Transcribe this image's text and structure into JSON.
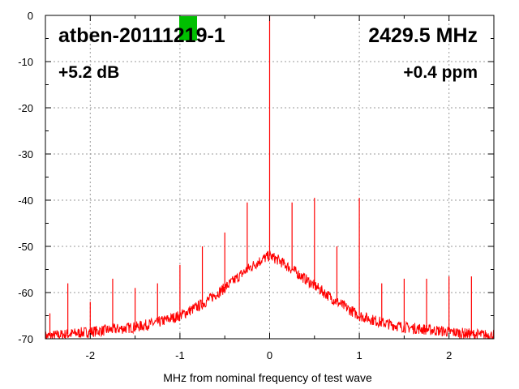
{
  "chart_data": {
    "type": "line",
    "xlabel": "MHz from nominal frequency of test wave",
    "ylabel": "",
    "xlim": [
      -2.5,
      2.5
    ],
    "ylim": [
      -70,
      0
    ],
    "xticks": [
      -2,
      -1,
      0,
      1,
      2
    ],
    "yticks": [
      0,
      -10,
      -20,
      -30,
      -40,
      -50,
      -60,
      -70
    ],
    "xtick_labels": [
      "-2",
      "-1",
      "0",
      "1",
      "2"
    ],
    "ytick_labels": [
      "0",
      "-10",
      "-20",
      "-30",
      "-40",
      "-50",
      "-60",
      "-70"
    ],
    "grid": true,
    "series_color": "#ff0000",
    "indicator_color": "#00c000",
    "annotations": {
      "device": "atben-20111219-1",
      "frequency": "2429.5 MHz",
      "power_offset": "+5.2 dB",
      "freq_offset": "+0.4 ppm"
    },
    "series": [
      {
        "envelope": [
          [
            -2.5,
            -69.5
          ],
          [
            -2.25,
            -69.0
          ],
          [
            -2.0,
            -68.5
          ],
          [
            -1.75,
            -68.0
          ],
          [
            -1.5,
            -67.5
          ],
          [
            -1.25,
            -66.5
          ],
          [
            -1.0,
            -65.0
          ],
          [
            -0.75,
            -62.5
          ],
          [
            -0.5,
            -59.0
          ],
          [
            -0.25,
            -55.0
          ],
          [
            -0.1,
            -53.0
          ],
          [
            0.0,
            -52.0
          ],
          [
            0.1,
            -53.0
          ],
          [
            0.25,
            -55.0
          ],
          [
            0.5,
            -58.5
          ],
          [
            0.75,
            -62.0
          ],
          [
            1.0,
            -65.0
          ],
          [
            1.25,
            -66.5
          ],
          [
            1.5,
            -67.5
          ],
          [
            1.75,
            -68.0
          ],
          [
            2.0,
            -68.5
          ],
          [
            2.25,
            -69.0
          ],
          [
            2.5,
            -69.3
          ]
        ],
        "spikes": [
          [
            -2.45,
            -64.5
          ],
          [
            -2.25,
            -58.0
          ],
          [
            -2.0,
            -62.0
          ],
          [
            -1.75,
            -57.0
          ],
          [
            -1.5,
            -59.0
          ],
          [
            -1.25,
            -58.0
          ],
          [
            -1.0,
            -54.0
          ],
          [
            -0.75,
            -50.0
          ],
          [
            -0.5,
            -47.0
          ],
          [
            -0.25,
            -40.5
          ],
          [
            0.0,
            0.0
          ],
          [
            0.25,
            -40.5
          ],
          [
            0.5,
            -39.5
          ],
          [
            0.75,
            -50.0
          ],
          [
            1.0,
            -39.5
          ],
          [
            1.25,
            -58.0
          ],
          [
            1.5,
            -57.0
          ],
          [
            1.75,
            -57.0
          ],
          [
            2.0,
            -56.5
          ],
          [
            2.25,
            -56.5
          ]
        ]
      }
    ]
  }
}
